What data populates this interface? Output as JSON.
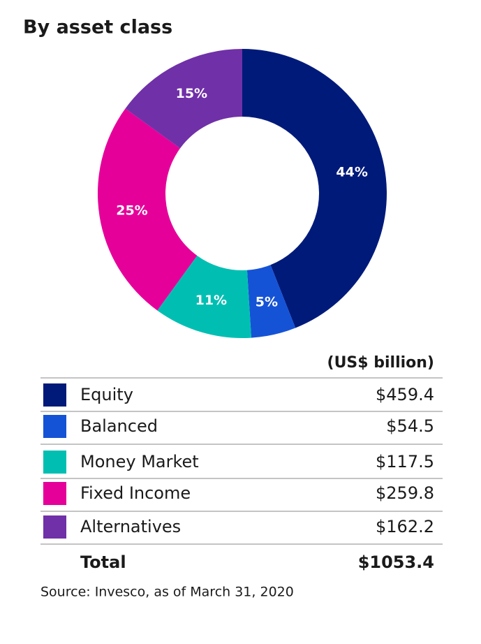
{
  "chart_data": {
    "type": "pie",
    "title": "By asset class",
    "categories": [
      "Equity",
      "Balanced",
      "Money Market",
      "Fixed Income",
      "Alternatives"
    ],
    "values": [
      44,
      5,
      11,
      25,
      15
    ],
    "value_labels": [
      "44%",
      "5%",
      "11%",
      "25%",
      "15%"
    ],
    "colors": [
      "#001a7a",
      "#1553d6",
      "#00bfb2",
      "#e6009a",
      "#7030a8"
    ]
  },
  "table": {
    "header": "(US$ billion)",
    "amounts": [
      "$459.4",
      "$54.5",
      "$117.5",
      "$259.8",
      "$162.2"
    ],
    "total": {
      "label": "Total",
      "amount": "$1053.4"
    }
  },
  "source": "Source: Invesco, as of March 31, 2020"
}
